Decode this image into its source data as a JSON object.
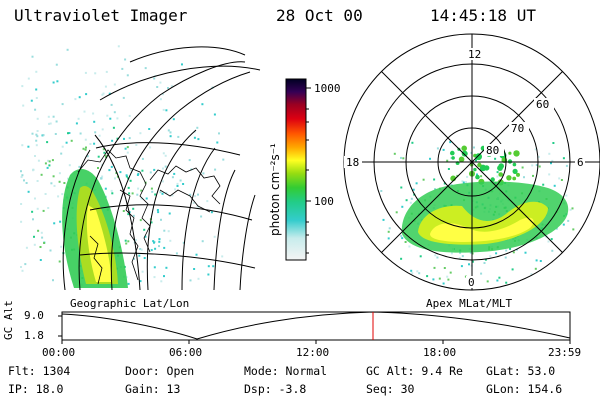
{
  "header": {
    "title": "Ultraviolet Imager",
    "date": "28 Oct 00",
    "time": "14:45:18 UT"
  },
  "colorbar": {
    "unit_label": "photon cm⁻²s⁻¹",
    "ticks": [
      "1000",
      "100"
    ]
  },
  "polar_plot": {
    "mlt_labels": [
      "12",
      "18",
      "6",
      "0"
    ],
    "mlat_labels": [
      "60",
      "70",
      "80"
    ]
  },
  "panel_labels": {
    "left": "Geographic Lat/Lon",
    "right": "Apex MLat/MLT"
  },
  "alt_plot": {
    "ylabel": "GC Alt",
    "yticks": [
      "9.0",
      "1.8"
    ],
    "xticks": [
      "00:00",
      "06:00",
      "12:00",
      "18:00",
      "23:59"
    ],
    "current_time": "14:45"
  },
  "status": {
    "flt": "Flt: 1304",
    "ip": "IP: 18.0",
    "door": "Door: Open",
    "gain": "Gain: 13",
    "mode": "Mode: Normal",
    "dsp": "Dsp:   -3.8",
    "gc_alt": "GC Alt: 9.4 Re",
    "seq": "Seq: 30",
    "glat": "GLat:  53.0",
    "glon": "GLon: 154.6"
  },
  "colors": {
    "red_marker": "#e00000",
    "aurora_green": "#22cc44",
    "aurora_yellow": "#ffff40"
  }
}
